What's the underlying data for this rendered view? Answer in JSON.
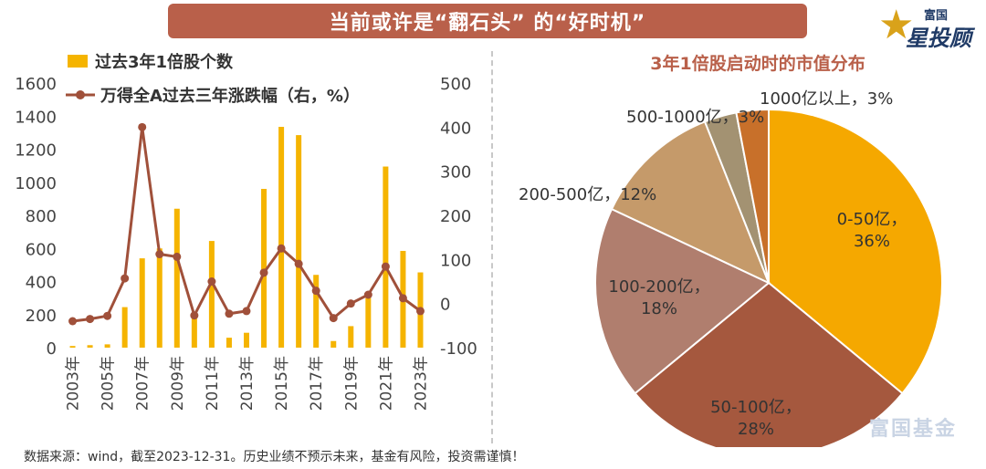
{
  "header": {
    "title": "当前或许是“翻石头” 的“好时机”"
  },
  "logo": {
    "line1": "富国",
    "line2": "星投顾"
  },
  "watermark": "富国基金",
  "footnote": "数据来源：wind，截至2023-12-31。历史业绩不预示未来，基金有风险，投资需谨慎！",
  "colors": {
    "banner": "#b9604a",
    "bar": "#f5b400",
    "line": "#a0503a",
    "pie": [
      "#f5a800",
      "#a5583e",
      "#b07e6e",
      "#c59a6a",
      "#a39272",
      "#c8702a"
    ]
  },
  "chart_data": [
    {
      "type": "bar+line",
      "title": "",
      "legend": [
        "过去3年1倍股个数",
        "万得全A过去三年涨跌幅（右，%）"
      ],
      "legend_placement": "top",
      "categories": [
        "2003年",
        "2004年",
        "2005年",
        "2006年",
        "2007年",
        "2008年",
        "2009年",
        "2010年",
        "2011年",
        "2012年",
        "2013年",
        "2014年",
        "2015年",
        "2016年",
        "2017年",
        "2018年",
        "2019年",
        "2020年",
        "2021年",
        "2022年",
        "2023年"
      ],
      "x_tick_labels": [
        "2003年",
        "2005年",
        "2007年",
        "2009年",
        "2011年",
        "2013年",
        "2015年",
        "2017年",
        "2019年",
        "2021年",
        "2023年"
      ],
      "series": [
        {
          "name": "过去3年1倍股个数",
          "type": "bar",
          "axis": "left",
          "values": [
            10,
            15,
            20,
            245,
            540,
            600,
            840,
            200,
            645,
            60,
            90,
            960,
            1335,
            1285,
            440,
            40,
            130,
            300,
            1095,
            585,
            455
          ]
        },
        {
          "name": "万得全A过去三年涨跌幅（右，%）",
          "type": "line",
          "axis": "right",
          "values": [
            -40,
            -35,
            -28,
            57,
            400,
            112,
            106,
            -27,
            50,
            -23,
            -17,
            70,
            125,
            90,
            29,
            -33,
            0,
            20,
            84,
            12,
            -17
          ]
        }
      ],
      "y_left": {
        "range": [
          0,
          1600
        ],
        "ticks": [
          "0",
          "200",
          "400",
          "600",
          "800",
          "1000",
          "1200",
          "1400",
          "1600"
        ]
      },
      "y_right": {
        "range": [
          -100,
          500
        ],
        "ticks": [
          "-100",
          "0",
          "100",
          "200",
          "300",
          "400",
          "500"
        ]
      },
      "grid": false
    },
    {
      "type": "pie",
      "title": "3年1倍股启动时的市值分布",
      "slices": [
        {
          "label": "0-50亿，",
          "pct_label": "36%",
          "value": 36
        },
        {
          "label": "50-100亿，",
          "pct_label": "28%",
          "value": 28
        },
        {
          "label": "100-200亿，",
          "pct_label": "18%",
          "value": 18
        },
        {
          "label": "200-500亿，",
          "pct_label": "12%",
          "value": 12
        },
        {
          "label": "500-1000亿，",
          "pct_label": "3%",
          "value": 3
        },
        {
          "label": "1000亿以上，",
          "pct_label": "3%",
          "value": 3
        }
      ]
    }
  ]
}
